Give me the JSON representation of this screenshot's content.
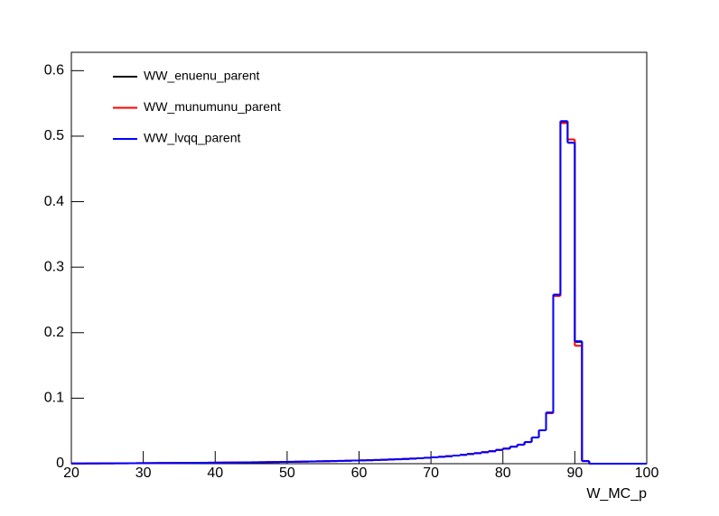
{
  "chart_data": {
    "type": "histogram",
    "x_label": "W_MC_p",
    "bins": [
      20,
      21,
      22,
      23,
      24,
      25,
      26,
      27,
      28,
      29,
      30,
      31,
      32,
      33,
      34,
      35,
      36,
      37,
      38,
      39,
      40,
      41,
      42,
      43,
      44,
      45,
      46,
      47,
      48,
      49,
      50,
      51,
      52,
      53,
      54,
      55,
      56,
      57,
      58,
      59,
      60,
      61,
      62,
      63,
      64,
      65,
      66,
      67,
      68,
      69,
      70,
      71,
      72,
      73,
      74,
      75,
      76,
      77,
      78,
      79,
      80,
      81,
      82,
      83,
      84,
      85,
      86,
      87,
      88,
      89,
      90,
      91,
      92,
      93,
      94,
      95,
      96,
      97,
      98,
      99,
      100
    ],
    "series": [
      {
        "name": "WW_enuenu_parent",
        "color": "#000000",
        "values": [
          0.0003,
          0.0003,
          0.0004,
          0.0004,
          0.0005,
          0.0005,
          0.0006,
          0.0006,
          0.0007,
          0.0008,
          0.0008,
          0.0009,
          0.001,
          0.001,
          0.0011,
          0.0012,
          0.0012,
          0.0013,
          0.0014,
          0.0015,
          0.0016,
          0.0017,
          0.0018,
          0.0019,
          0.002,
          0.0021,
          0.0022,
          0.0024,
          0.0025,
          0.0027,
          0.0028,
          0.003,
          0.0032,
          0.0034,
          0.0036,
          0.0038,
          0.004,
          0.0042,
          0.0045,
          0.0048,
          0.005,
          0.0053,
          0.0056,
          0.006,
          0.0064,
          0.0068,
          0.0072,
          0.0077,
          0.0083,
          0.009,
          0.0097,
          0.0105,
          0.0114,
          0.0124,
          0.0135,
          0.0148,
          0.016,
          0.0175,
          0.019,
          0.021,
          0.023,
          0.026,
          0.029,
          0.033,
          0.04,
          0.051,
          0.078,
          0.258,
          0.522,
          0.49,
          0.186,
          0.004,
          0,
          0,
          0,
          0,
          0,
          0,
          0,
          0
        ]
      },
      {
        "name": "WW_munumunu_parent",
        "color": "#ff0000",
        "values": [
          0.0003,
          0.0003,
          0.0004,
          0.0004,
          0.0005,
          0.0005,
          0.0006,
          0.0006,
          0.0007,
          0.0008,
          0.0009,
          0.0009,
          0.001,
          0.0011,
          0.0011,
          0.0012,
          0.0013,
          0.0013,
          0.0014,
          0.0015,
          0.0016,
          0.0017,
          0.0018,
          0.0019,
          0.002,
          0.0022,
          0.0023,
          0.0024,
          0.0026,
          0.0027,
          0.0029,
          0.003,
          0.0032,
          0.0034,
          0.0036,
          0.0038,
          0.004,
          0.0043,
          0.0045,
          0.0048,
          0.0051,
          0.0053,
          0.0057,
          0.006,
          0.0064,
          0.0068,
          0.0073,
          0.0078,
          0.0083,
          0.009,
          0.0097,
          0.0105,
          0.0114,
          0.0124,
          0.0135,
          0.0148,
          0.016,
          0.0176,
          0.019,
          0.021,
          0.023,
          0.026,
          0.029,
          0.033,
          0.04,
          0.051,
          0.077,
          0.256,
          0.52,
          0.495,
          0.18,
          0.004,
          0,
          0,
          0,
          0,
          0,
          0,
          0,
          0
        ]
      },
      {
        "name": "WW_lvqq_parent",
        "color": "#0000ff",
        "values": [
          0.0003,
          0.0003,
          0.0004,
          0.0004,
          0.0005,
          0.0005,
          0.0006,
          0.0006,
          0.0007,
          0.0008,
          0.0008,
          0.0009,
          0.001,
          0.001,
          0.0011,
          0.0012,
          0.0012,
          0.0013,
          0.0014,
          0.0015,
          0.0016,
          0.0017,
          0.0018,
          0.0019,
          0.002,
          0.0021,
          0.0022,
          0.0024,
          0.0025,
          0.0027,
          0.0028,
          0.003,
          0.0032,
          0.0034,
          0.0036,
          0.0038,
          0.004,
          0.0042,
          0.0045,
          0.0048,
          0.005,
          0.0053,
          0.0056,
          0.006,
          0.0064,
          0.0068,
          0.0072,
          0.0077,
          0.0083,
          0.009,
          0.0097,
          0.0105,
          0.0114,
          0.0124,
          0.0135,
          0.0148,
          0.016,
          0.0175,
          0.019,
          0.021,
          0.023,
          0.026,
          0.029,
          0.033,
          0.04,
          0.051,
          0.078,
          0.258,
          0.523,
          0.49,
          0.187,
          0.004,
          0,
          0,
          0,
          0,
          0,
          0,
          0,
          0
        ]
      }
    ],
    "xlim": [
      20,
      100
    ],
    "ylim": [
      0,
      0.628
    ],
    "xticks": [
      20,
      30,
      40,
      50,
      60,
      70,
      80,
      90,
      100
    ],
    "yticks": [
      0,
      0.1,
      0.2,
      0.3,
      0.4,
      0.5,
      0.6
    ],
    "legend": "upper-left"
  }
}
